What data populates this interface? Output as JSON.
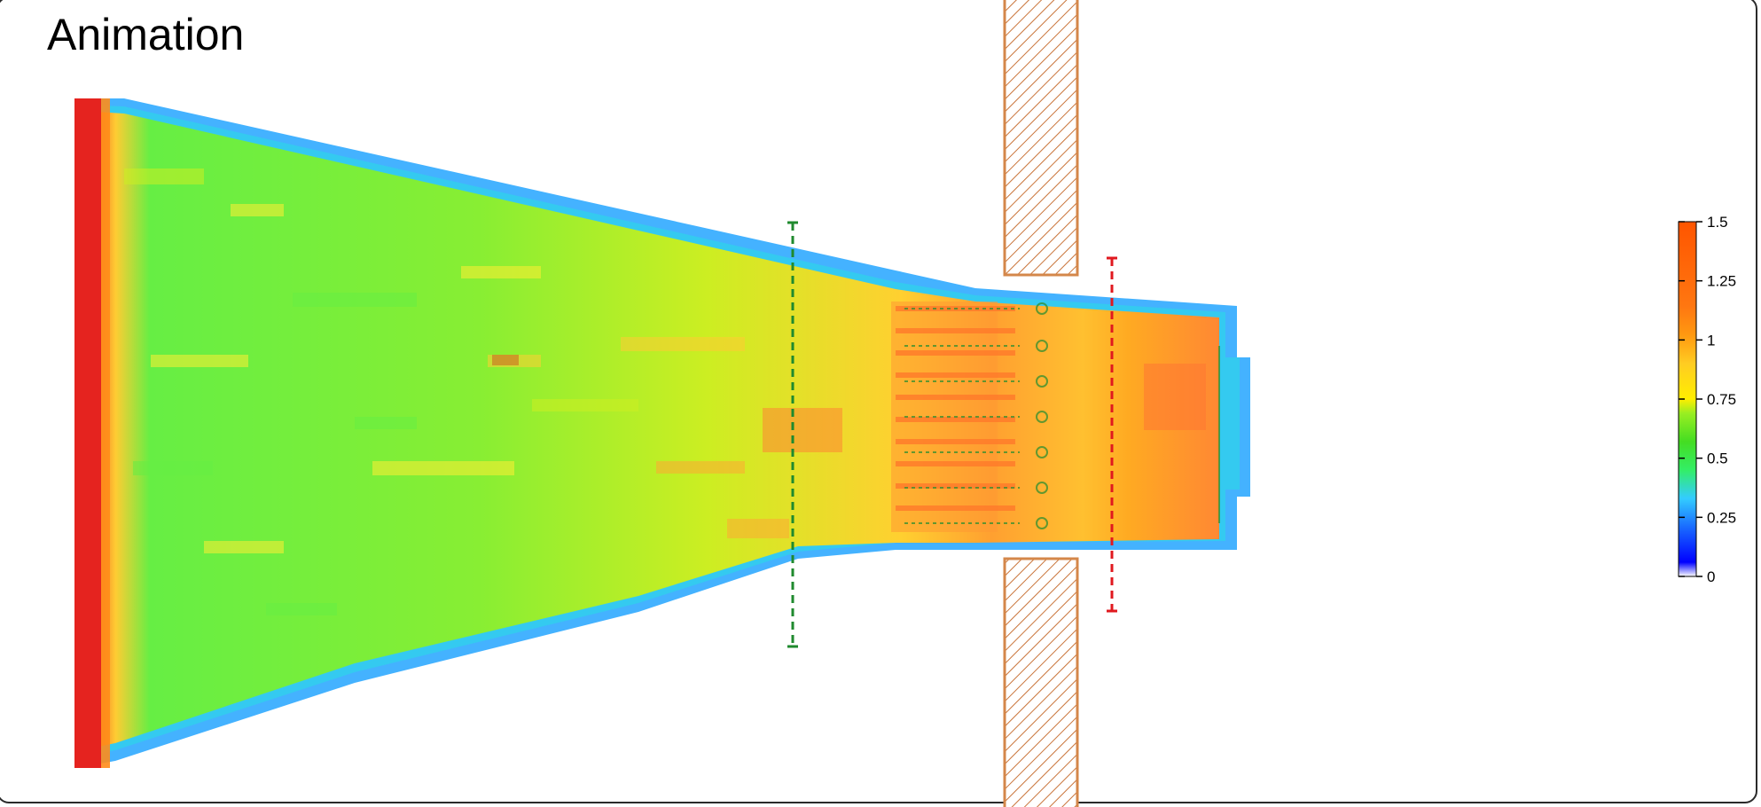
{
  "title": "Animation",
  "colors": {
    "background": "#ffffff",
    "wall_stroke": "#d4874a",
    "wall_hatch": "#c9743a",
    "gate_green": "#1f8a2e",
    "gate_red": "#e0191f",
    "border": "#2a2a2a"
  },
  "colorbar": {
    "min": 0,
    "max": 1.5,
    "ticks": [
      "1.5",
      "1.25",
      "1",
      "0.75",
      "0.5",
      "0.25",
      "0"
    ],
    "tick_values": [
      1.5,
      1.25,
      1,
      0.75,
      0.5,
      0.25,
      0
    ],
    "gradient": [
      "#ffffff",
      "#0000ff",
      "#1a6cff",
      "#33ccff",
      "#33ee66",
      "#66dd22",
      "#ccee22",
      "#ffee00",
      "#ffaa22",
      "#ff8800",
      "#ff5500"
    ]
  },
  "scene": {
    "description_free": true,
    "gates": [
      {
        "name": "green-gate",
        "color": "gate_green"
      },
      {
        "name": "red-gate",
        "color": "gate_red"
      }
    ],
    "walls": [
      "wall-top",
      "wall-bottom"
    ]
  }
}
